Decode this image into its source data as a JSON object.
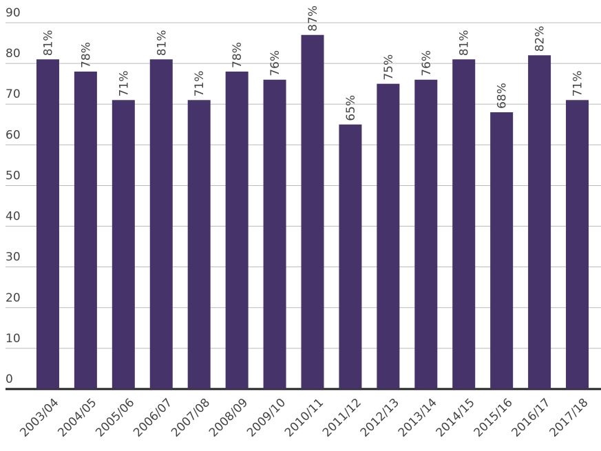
{
  "chart_data": {
    "type": "bar",
    "categories": [
      "2003/04",
      "2004/05",
      "2005/06",
      "2006/07",
      "2007/08",
      "2008/09",
      "2009/10",
      "2010/11",
      "2011/12",
      "2012/13",
      "2013/14",
      "2014/15",
      "2015/16",
      "2016/17",
      "2017/18"
    ],
    "values": [
      81,
      78,
      71,
      81,
      71,
      78,
      76,
      87,
      65,
      75,
      76,
      81,
      68,
      82,
      71
    ],
    "value_labels": [
      "81%",
      "78%",
      "71%",
      "81%",
      "71%",
      "78%",
      "76%",
      "87%",
      "65%",
      "75%",
      "76%",
      "81%",
      "68%",
      "82%",
      "71%"
    ],
    "color": "#46336a",
    "ylim": [
      0,
      90
    ],
    "yticks": [
      0,
      10,
      20,
      30,
      40,
      50,
      60,
      70,
      80,
      90
    ],
    "grid": true
  }
}
